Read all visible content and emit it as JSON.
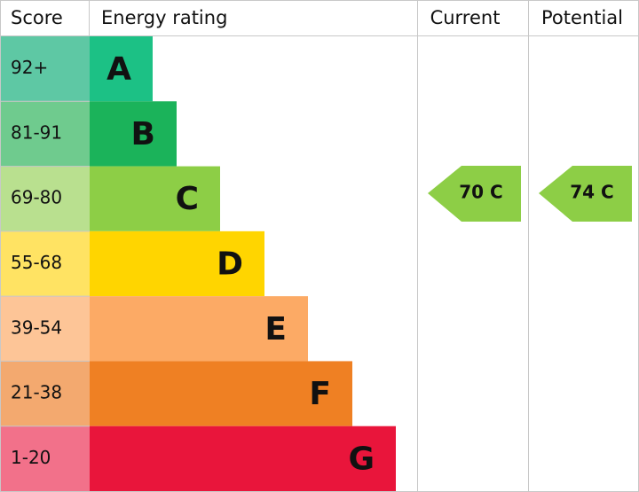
{
  "header": {
    "score": "Score",
    "rating": "Energy rating",
    "current": "Current",
    "potential": "Potential"
  },
  "bands": [
    {
      "score": "92+",
      "letter": "A"
    },
    {
      "score": "81-91",
      "letter": "B"
    },
    {
      "score": "69-80",
      "letter": "C"
    },
    {
      "score": "55-68",
      "letter": "D"
    },
    {
      "score": "39-54",
      "letter": "E"
    },
    {
      "score": "21-38",
      "letter": "F"
    },
    {
      "score": "1-20",
      "letter": "G"
    }
  ],
  "current": "70 C",
  "potential": "74 C"
}
